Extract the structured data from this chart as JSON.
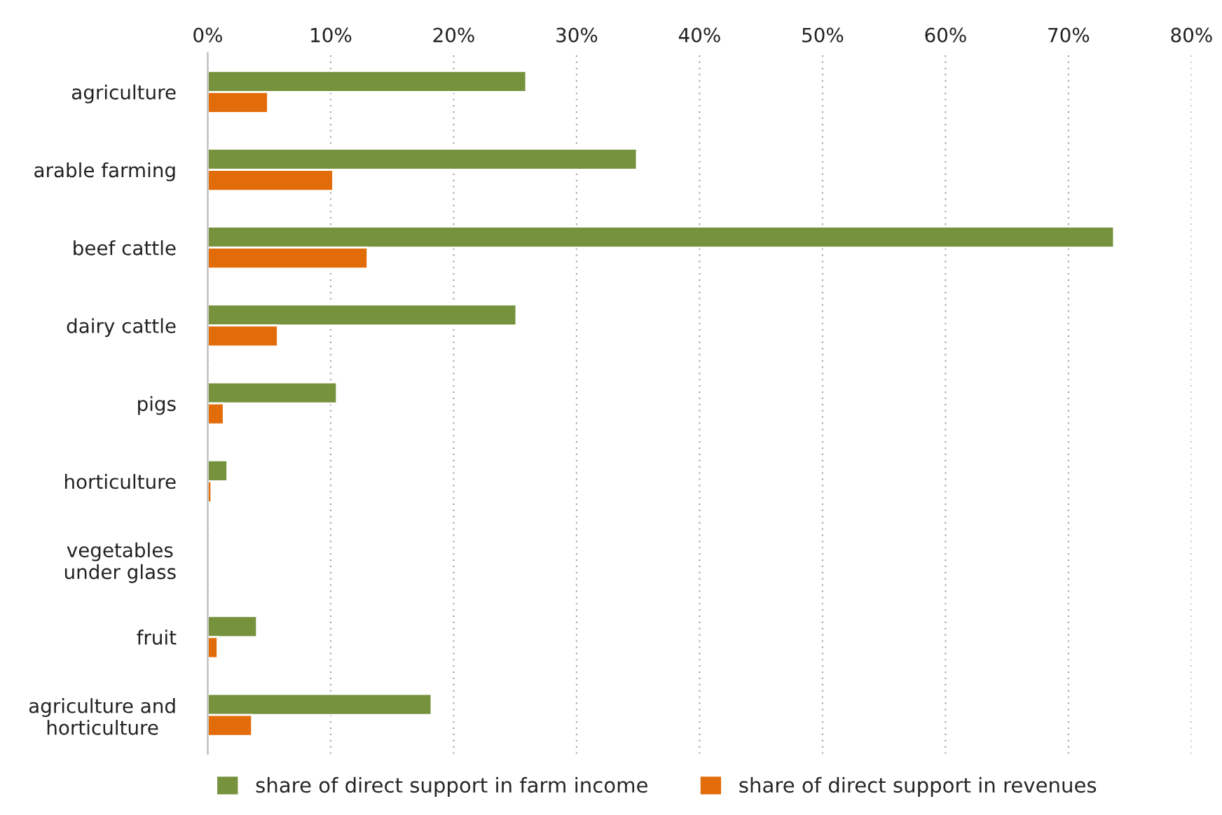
{
  "chart_data": {
    "type": "bar",
    "orientation": "horizontal",
    "categories": [
      "agriculture",
      "arable farming",
      "beef cattle",
      "dairy cattle",
      "pigs",
      "horticulture",
      "vegetables\nunder glass",
      "fruit",
      "agriculture and\nhorticulture"
    ],
    "series": [
      {
        "name": "share of direct support in farm income",
        "color": "#76923c",
        "values": [
          25.9,
          34.9,
          73.7,
          25.1,
          10.5,
          1.6,
          null,
          4.0,
          18.2
        ]
      },
      {
        "name": "share of direct support in revenues",
        "color": "#e36c0a",
        "values": [
          4.9,
          10.2,
          13.0,
          5.7,
          1.3,
          0.3,
          null,
          0.8,
          3.6
        ]
      }
    ],
    "xlim": [
      0,
      80
    ],
    "xticks": [
      {
        "value": 0,
        "label": "0%"
      },
      {
        "value": 10,
        "label": "10%"
      },
      {
        "value": 20,
        "label": "20%"
      },
      {
        "value": 30,
        "label": "30%"
      },
      {
        "value": 40,
        "label": "40%"
      },
      {
        "value": 50,
        "label": "50%"
      },
      {
        "value": 60,
        "label": "60%"
      },
      {
        "value": 70,
        "label": "70%"
      },
      {
        "value": 80,
        "label": "80%"
      }
    ],
    "grid": "x",
    "legend": "bottom"
  }
}
